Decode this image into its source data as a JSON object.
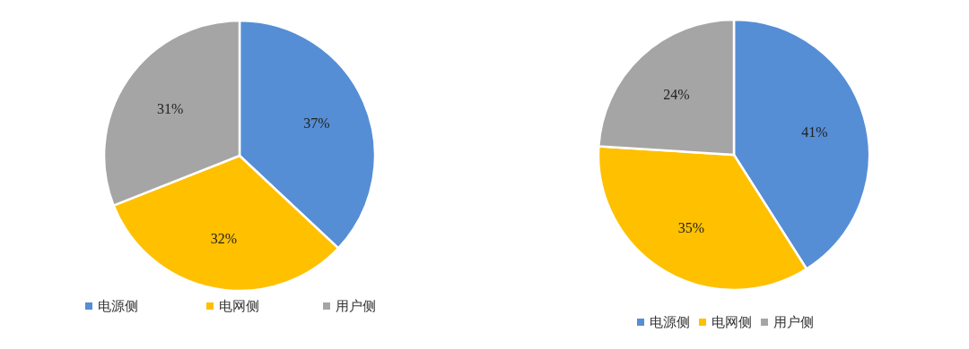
{
  "chart_data": [
    {
      "type": "pie",
      "categories": [
        "电源侧",
        "电网侧",
        "用户侧"
      ],
      "values": [
        37,
        32,
        31
      ],
      "value_labels": [
        "37%",
        "32%",
        "31%"
      ],
      "colors": [
        "#558ed5",
        "#ffc000",
        "#a5a5a5"
      ],
      "legend": "bottom"
    },
    {
      "type": "pie",
      "categories": [
        "电源侧",
        "电网侧",
        "用户侧"
      ],
      "values": [
        41,
        35,
        24
      ],
      "value_labels": [
        "41%",
        "35%",
        "24%"
      ],
      "colors": [
        "#558ed5",
        "#ffc000",
        "#a5a5a5"
      ],
      "legend": "bottom"
    }
  ]
}
